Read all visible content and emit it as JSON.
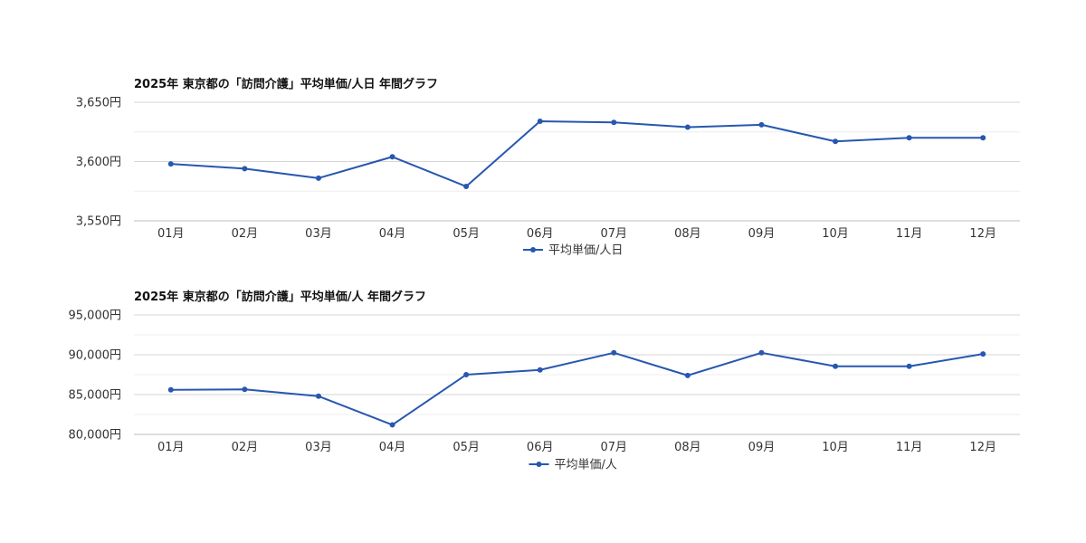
{
  "chart_data": [
    {
      "type": "line",
      "title": "2025年 東京都の「訪問介護」平均単価/人日 年間グラフ",
      "categories": [
        "01月",
        "02月",
        "03月",
        "04月",
        "05月",
        "06月",
        "07月",
        "08月",
        "09月",
        "10月",
        "11月",
        "12月"
      ],
      "series": [
        {
          "name": "平均単価/人日",
          "values": [
            3598,
            3594,
            3586,
            3604,
            3579,
            3634,
            3633,
            3629,
            3631,
            3617,
            3620,
            3620
          ]
        }
      ],
      "ylim": [
        3550,
        3650
      ],
      "yticks": [
        3550,
        3600,
        3650
      ],
      "ytick_labels": [
        "3,550円",
        "3,600円",
        "3,650円"
      ],
      "xlabel": "",
      "ylabel": "",
      "grid": true,
      "legend_position": "bottom",
      "line_color": "#2757b0"
    },
    {
      "type": "line",
      "title": "2025年 東京都の「訪問介護」平均単価/人 年間グラフ",
      "categories": [
        "01月",
        "02月",
        "03月",
        "04月",
        "05月",
        "06月",
        "07月",
        "08月",
        "09月",
        "10月",
        "11月",
        "12月"
      ],
      "series": [
        {
          "name": "平均単価/人",
          "values": [
            85600,
            85650,
            84800,
            81200,
            87500,
            88100,
            90250,
            87400,
            90250,
            88550,
            88550,
            90100
          ]
        }
      ],
      "ylim": [
        80000,
        95000
      ],
      "yticks": [
        80000,
        85000,
        90000,
        95000
      ],
      "ytick_labels": [
        "80,000円",
        "85,000円",
        "90,000円",
        "95,000円"
      ],
      "xlabel": "",
      "ylabel": "",
      "grid": true,
      "legend_position": "bottom",
      "line_color": "#2757b0"
    }
  ]
}
